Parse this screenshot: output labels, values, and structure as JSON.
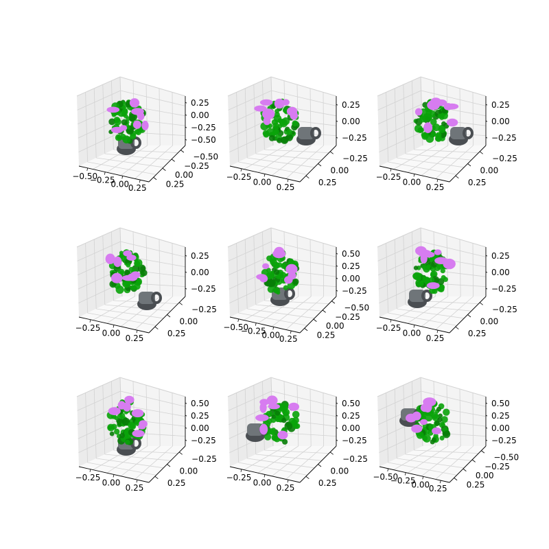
{
  "colors": {
    "pane_left": "#ebebeb",
    "pane_right": "#f4f4f4",
    "floor": "#f9f9f9",
    "grid": "#d2d2d2",
    "axis_line": "#000000",
    "mug": "#6f7579",
    "mug_dark": "#4a4e52",
    "plant": "#0aa30a",
    "plant_dark": "#087d08",
    "flower": "#d77cf0"
  },
  "chart_data": [
    {
      "type": "scatter3d",
      "x_ticks": [
        "−0.50",
        "−0.25",
        "0.00",
        "0.25"
      ],
      "y_ticks": [
        "0.25",
        "0.00",
        "−0.25",
        "−0.50"
      ],
      "z_ticks": [
        "0.25",
        "0.00",
        "−0.25",
        "−0.50"
      ],
      "mug_position": "bottom-center",
      "series": [
        {
          "color": "plant"
        },
        {
          "color": "flower"
        },
        {
          "color": "mug"
        }
      ]
    },
    {
      "type": "scatter3d",
      "x_ticks": [
        "−0.25",
        "0.00",
        "0.25"
      ],
      "y_ticks": [
        "0.25",
        "0.00",
        "−0.25"
      ],
      "z_ticks": [
        "0.25",
        "0.00",
        "−0.25"
      ],
      "mug_position": "right",
      "series": [
        {
          "color": "plant"
        },
        {
          "color": "flower"
        },
        {
          "color": "mug"
        }
      ]
    },
    {
      "type": "scatter3d",
      "x_ticks": [
        "−0.25",
        "0.00",
        "0.25"
      ],
      "y_ticks": [
        "0.25",
        "0.00",
        "−0.25"
      ],
      "z_ticks": [
        "0.25",
        "0.00",
        "−0.25"
      ],
      "mug_position": "right",
      "series": [
        {
          "color": "plant"
        },
        {
          "color": "flower"
        },
        {
          "color": "mug"
        }
      ]
    },
    {
      "type": "scatter3d",
      "x_ticks": [
        "−0.25",
        "0.00",
        "0.25"
      ],
      "y_ticks": [
        "0.25",
        "0.00",
        "−0.25"
      ],
      "z_ticks": [
        "0.25",
        "0.00",
        "−0.25"
      ],
      "mug_position": "bottom-right",
      "series": [
        {
          "color": "plant"
        },
        {
          "color": "flower"
        },
        {
          "color": "mug"
        }
      ]
    },
    {
      "type": "scatter3d",
      "x_ticks": [
        "−0.50",
        "−0.25",
        "0.00",
        "0.25"
      ],
      "y_ticks": [
        "0.25",
        "0.00",
        "−0.25",
        "−0.50"
      ],
      "z_ticks": [
        "0.50",
        "0.25",
        "0.00",
        "−0.25"
      ],
      "mug_position": "bottom-center",
      "series": [
        {
          "color": "plant"
        },
        {
          "color": "flower"
        },
        {
          "color": "mug"
        }
      ]
    },
    {
      "type": "scatter3d",
      "x_ticks": [
        "−0.25",
        "0.00",
        "0.25"
      ],
      "y_ticks": [
        "0.25",
        "0.00",
        "−0.25"
      ],
      "z_ticks": [
        "0.25",
        "0.00",
        "−0.25"
      ],
      "mug_position": "bottom-left",
      "series": [
        {
          "color": "plant"
        },
        {
          "color": "flower"
        },
        {
          "color": "mug"
        }
      ]
    },
    {
      "type": "scatter3d",
      "x_ticks": [
        "−0.25",
        "0.00",
        "0.25"
      ],
      "y_ticks": [
        "0.25",
        "0.00",
        "−0.25"
      ],
      "z_ticks": [
        "0.50",
        "0.25",
        "0.00",
        "−0.25"
      ],
      "mug_position": "bottom-center",
      "series": [
        {
          "color": "plant"
        },
        {
          "color": "flower"
        },
        {
          "color": "mug"
        }
      ]
    },
    {
      "type": "scatter3d",
      "x_ticks": [
        "−0.25",
        "0.00",
        "0.25"
      ],
      "y_ticks": [
        "0.25",
        "0.00",
        "−0.25"
      ],
      "z_ticks": [
        "0.50",
        "0.25",
        "0.00",
        "−0.25"
      ],
      "mug_position": "left",
      "series": [
        {
          "color": "plant"
        },
        {
          "color": "flower"
        },
        {
          "color": "mug"
        }
      ]
    },
    {
      "type": "scatter3d",
      "x_ticks": [
        "−0.50",
        "−0.25",
        "0.00",
        "0.25"
      ],
      "y_ticks": [
        "0.25",
        "0.00",
        "−0.25",
        "−0.50"
      ],
      "z_ticks": [
        "0.50",
        "0.25",
        "0.00",
        "−0.25"
      ],
      "mug_position": "top-left",
      "series": [
        {
          "color": "plant"
        },
        {
          "color": "flower"
        },
        {
          "color": "mug"
        }
      ]
    }
  ]
}
